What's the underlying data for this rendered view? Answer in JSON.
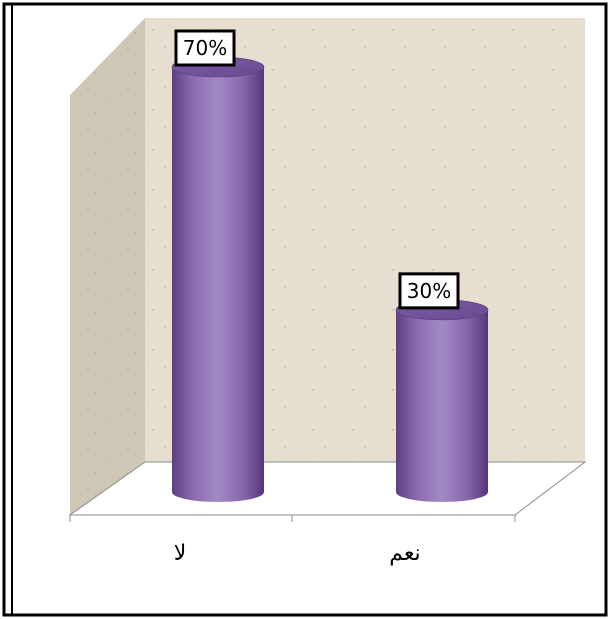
{
  "chart_data": {
    "type": "bar",
    "style": "3d-cylinder",
    "categories": [
      "لا",
      "نعم"
    ],
    "values": [
      70,
      30
    ],
    "data_labels": [
      "70%",
      "30%"
    ],
    "unit": "%",
    "ylim": [
      0,
      70
    ],
    "grid": false,
    "legend": "none",
    "colors": {
      "bar_fill": "#8B6BB0",
      "bar_dark": "#5E3F82",
      "bar_light": "#A58AC8",
      "back_wall": "#E8E1D3",
      "side_wall": "#CFC8B7",
      "floor": "#FFFFFF",
      "frame": "#000000"
    }
  }
}
